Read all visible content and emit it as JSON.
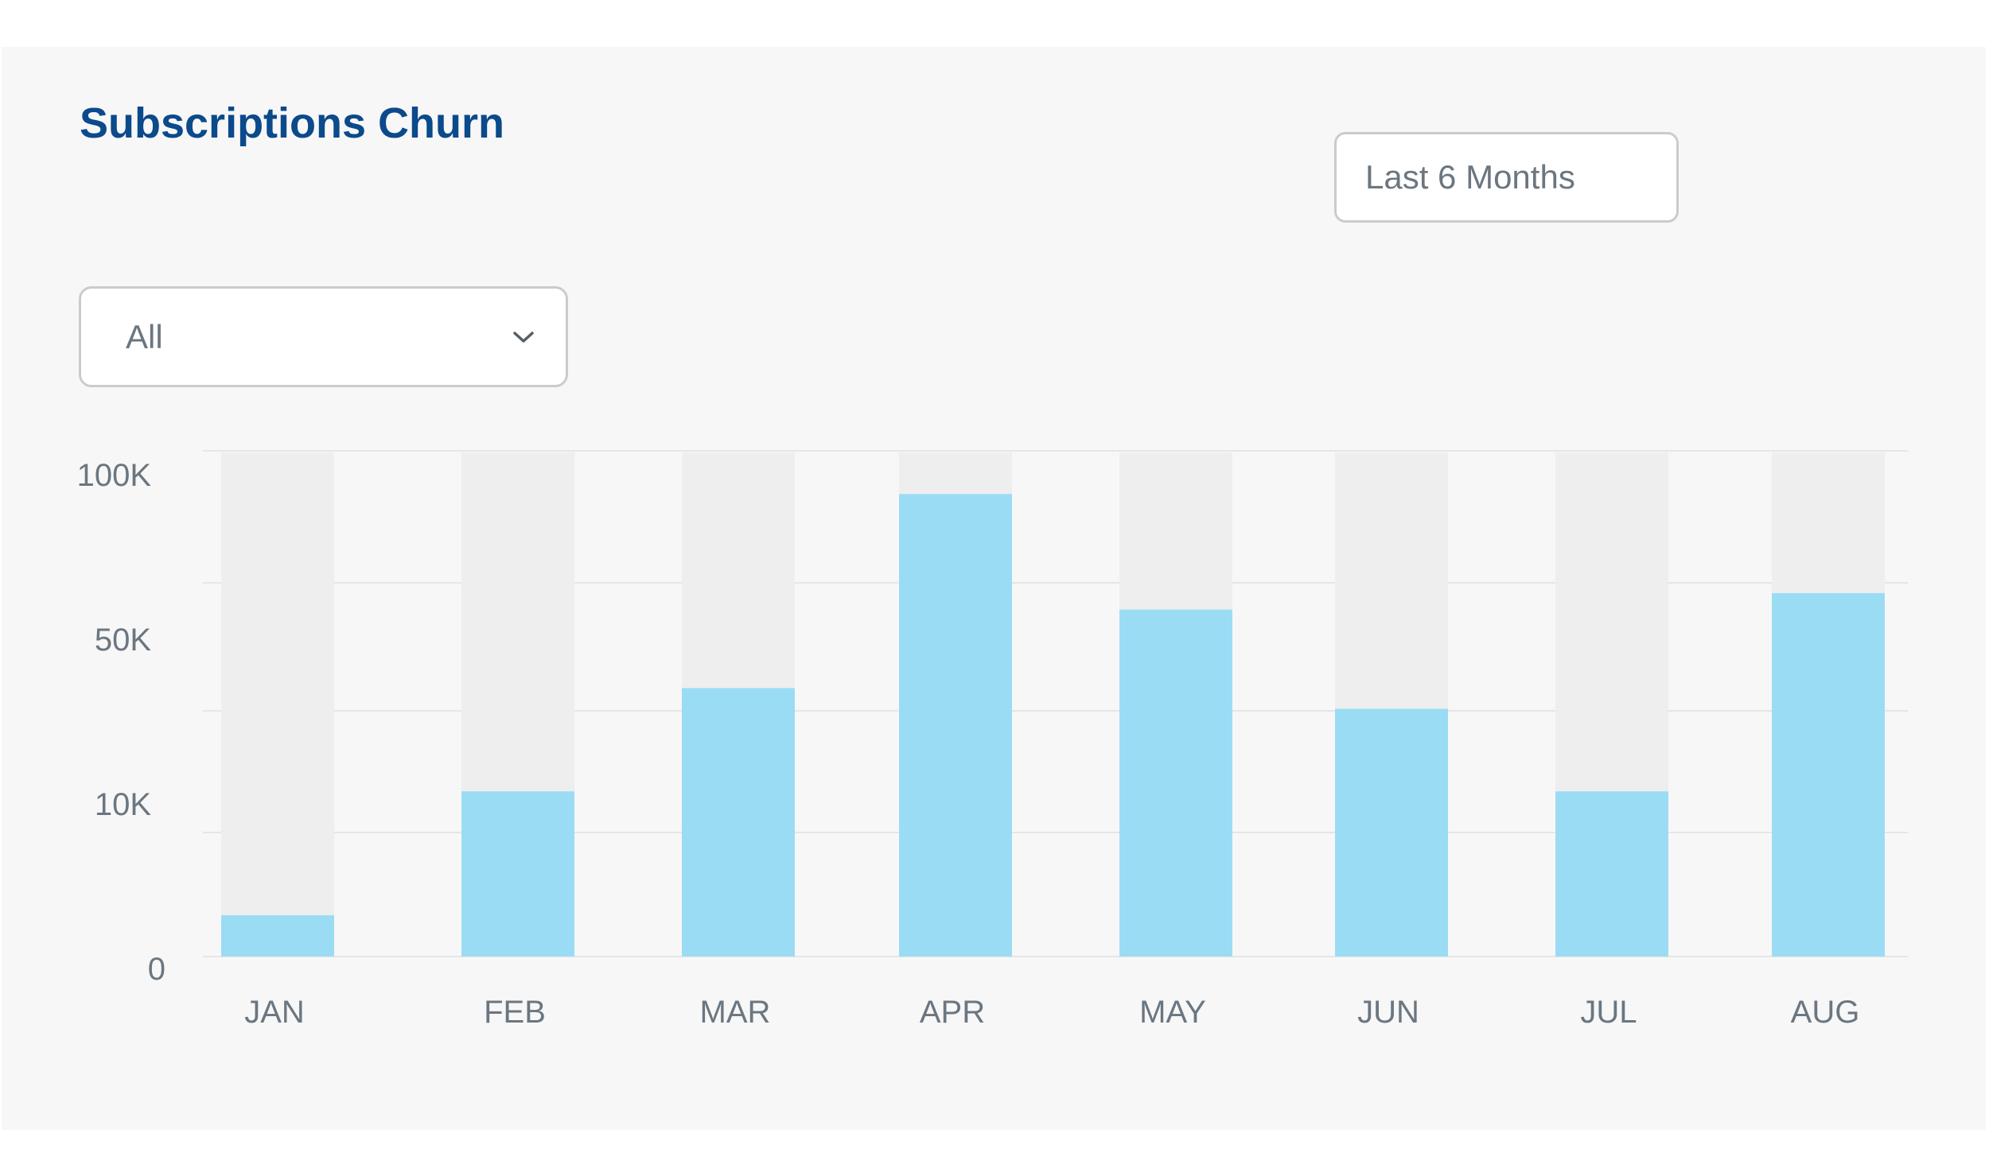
{
  "title": "Subscriptions Churn",
  "range_button": "Last 6 Months",
  "filter": {
    "selected": "All",
    "icon": "chevron-down-icon"
  },
  "colors": {
    "title": "#0b4a8b",
    "bar": "#9bdcf5",
    "bar_track": "#eeeeee",
    "gridline": "#e6e6e6",
    "text": "#6b7680"
  },
  "chart_data": {
    "type": "bar",
    "title": "Subscriptions Churn",
    "xlabel": "",
    "ylabel": "",
    "categories": [
      "JAN",
      "FEB",
      "MAR",
      "APR",
      "MAY",
      "JUN",
      "JUL",
      "AUG"
    ],
    "values": [
      2500,
      10000,
      35000,
      90000,
      55000,
      30000,
      10000,
      60000
    ],
    "y_ticks": [
      "0",
      "10K",
      "50K",
      "100K"
    ],
    "y_tick_values": [
      0,
      10000,
      50000,
      100000
    ],
    "ylim": [
      0,
      100000
    ],
    "y_scale": "piecewise (0, 10K, 50K, 100K shown at equal spacing)",
    "grid": true,
    "legend": "none",
    "background_track_bars": true
  }
}
